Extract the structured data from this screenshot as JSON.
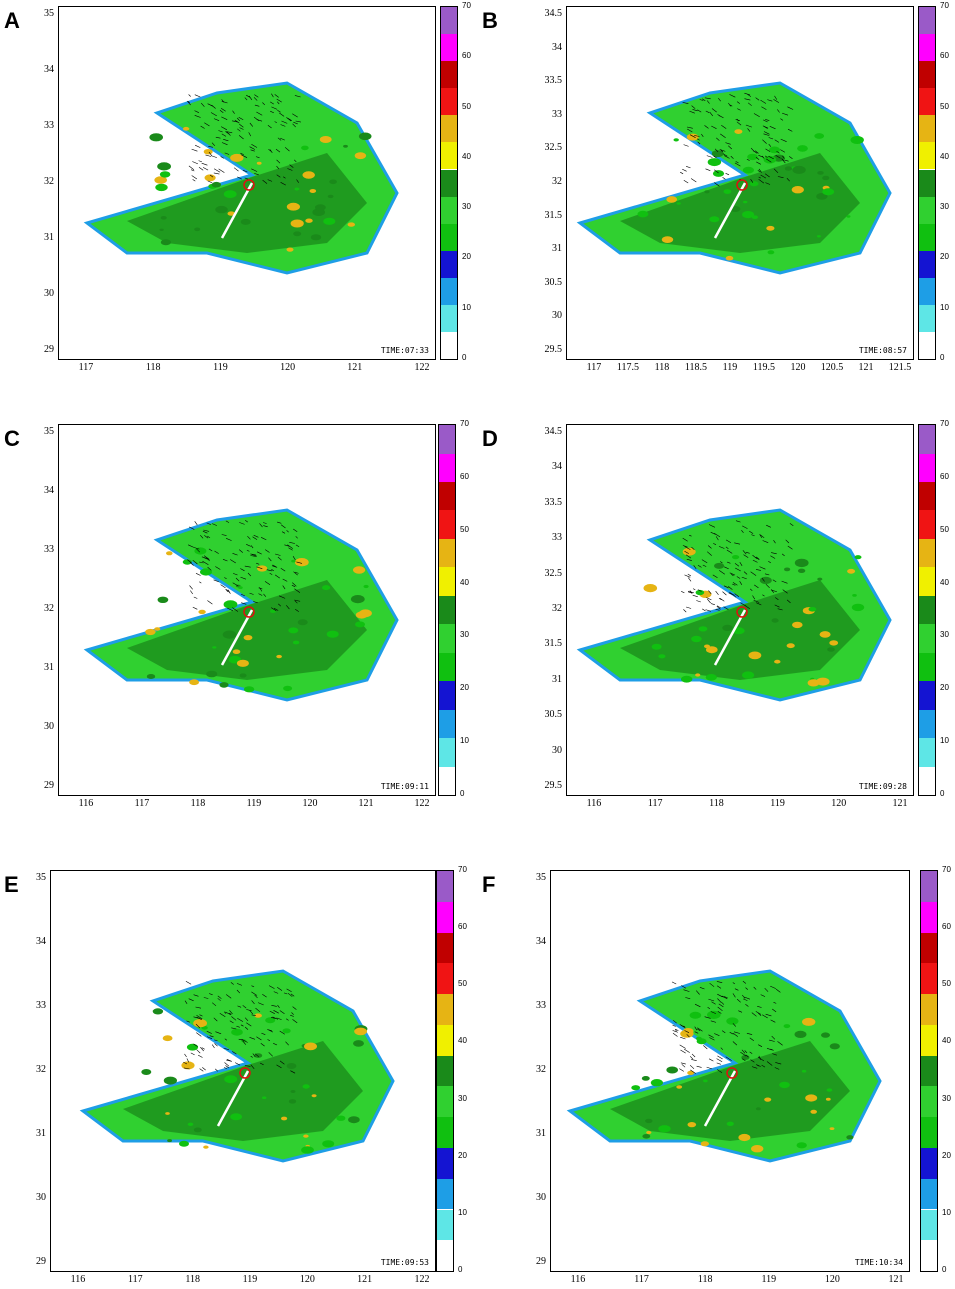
{
  "panels": [
    {
      "label": "A",
      "time": "TIME:07:33",
      "yticks": [
        "35",
        "34",
        "33",
        "32",
        "31",
        "30",
        "29"
      ],
      "xticks": [
        "117",
        "118",
        "119",
        "120",
        "121",
        "122"
      ]
    },
    {
      "label": "B",
      "time": "TIME:08:57",
      "yticks": [
        "34.5",
        "34",
        "33.5",
        "33",
        "32.5",
        "32",
        "31.5",
        "31",
        "30.5",
        "30",
        "29.5"
      ],
      "xticks": [
        "117",
        "117.5",
        "118",
        "118.5",
        "119",
        "119.5",
        "120",
        "120.5",
        "121",
        "121.5"
      ]
    },
    {
      "label": "C",
      "time": "TIME:09:11",
      "yticks": [
        "35",
        "34",
        "33",
        "32",
        "31",
        "30",
        "29"
      ],
      "xticks": [
        "116",
        "117",
        "118",
        "119",
        "120",
        "121",
        "122"
      ]
    },
    {
      "label": "D",
      "time": "TIME:09:28",
      "yticks": [
        "34.5",
        "34",
        "33.5",
        "33",
        "32.5",
        "32",
        "31.5",
        "31",
        "30.5",
        "30",
        "29.5"
      ],
      "xticks": [
        "116",
        "117",
        "118",
        "119",
        "120",
        "121"
      ]
    },
    {
      "label": "E",
      "time": "TIME:09:53",
      "yticks": [
        "35",
        "34",
        "33",
        "32",
        "31",
        "30",
        "29"
      ],
      "xticks": [
        "116",
        "117",
        "118",
        "119",
        "120",
        "121",
        "122"
      ]
    },
    {
      "label": "F",
      "time": "TIME:10:34",
      "yticks": [
        "35",
        "34",
        "33",
        "32",
        "31",
        "30",
        "29"
      ],
      "xticks": [
        "116",
        "117",
        "118",
        "119",
        "120",
        "121"
      ]
    }
  ],
  "colorbar": {
    "ticks": [
      "70",
      "60",
      "50",
      "40",
      "30",
      "20",
      "10",
      "0"
    ],
    "colors": [
      "#ffffff",
      "#5ee6e6",
      "#1e9ee6",
      "#1414d2",
      "#10c010",
      "#30d030",
      "#1a8a1a",
      "#f0f000",
      "#e6b414",
      "#f01414",
      "#c00000",
      "#ff00ff",
      "#9a5ac8"
    ]
  }
}
